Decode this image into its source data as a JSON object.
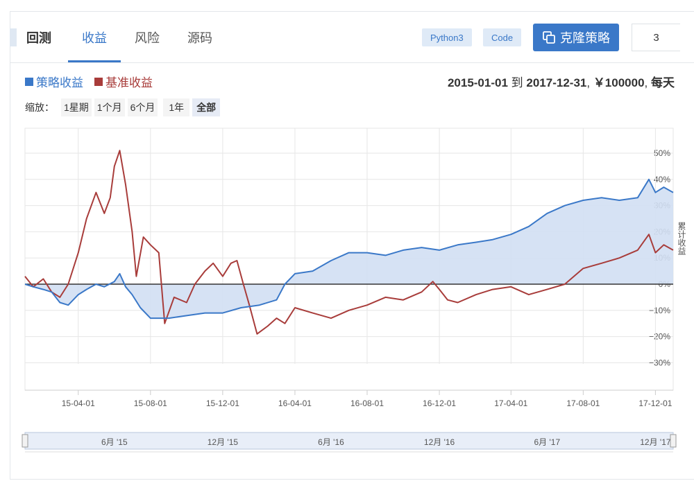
{
  "header": {
    "title": "回测",
    "tabs": [
      {
        "label": "收益",
        "active": true
      },
      {
        "label": "风险",
        "active": false
      },
      {
        "label": "源码",
        "active": false
      }
    ],
    "tags": [
      "Python3",
      "Code"
    ],
    "clone_button": "克隆策略",
    "count": "3"
  },
  "legend": [
    {
      "label": "策略收益",
      "color": "#3a78c8"
    },
    {
      "label": "基准收益",
      "color": "#a83c3a"
    }
  ],
  "info": {
    "start": "2015-01-01",
    "to": "到",
    "end": "2017-12-31",
    "capital": "￥100000",
    "frequency": "每天"
  },
  "zoom": {
    "label": "缩放：",
    "options": [
      "1星期",
      "1个月",
      "6个月",
      "1年",
      "全部"
    ],
    "active": "全部"
  },
  "chart_data": {
    "type": "area",
    "ylabel": "累计收益",
    "y_ticks": [
      "50%",
      "40%",
      "30%",
      "20%",
      "10%",
      "0%",
      "−10%",
      "−20%",
      "−30%"
    ],
    "y_tick_values": [
      50,
      40,
      30,
      20,
      10,
      0,
      -10,
      -20,
      -30
    ],
    "x_ticks": [
      "15-04-01",
      "15-08-01",
      "15-12-01",
      "16-04-01",
      "16-08-01",
      "16-12-01",
      "17-04-01",
      "17-08-01",
      "17-12-01"
    ],
    "navigator_ticks": [
      "6月 '15",
      "12月 '15",
      "6月 '16",
      "12月 '16",
      "6月 '17",
      "12月 '17"
    ],
    "x_range": [
      "2015-01-01",
      "2017-12-31"
    ],
    "series": [
      {
        "name": "策略收益",
        "color": "#3a78c8",
        "points": [
          [
            "2015-01-01",
            0
          ],
          [
            "2015-01-15",
            -1
          ],
          [
            "2015-02-01",
            -2
          ],
          [
            "2015-02-15",
            -3
          ],
          [
            "2015-03-01",
            -7
          ],
          [
            "2015-03-15",
            -8
          ],
          [
            "2015-04-01",
            -4
          ],
          [
            "2015-04-15",
            -2
          ],
          [
            "2015-05-01",
            0
          ],
          [
            "2015-05-15",
            -1
          ],
          [
            "2015-06-01",
            1
          ],
          [
            "2015-06-10",
            4
          ],
          [
            "2015-06-20",
            -1
          ],
          [
            "2015-07-01",
            -4
          ],
          [
            "2015-07-15",
            -9
          ],
          [
            "2015-08-01",
            -13
          ],
          [
            "2015-09-01",
            -13
          ],
          [
            "2015-10-01",
            -12
          ],
          [
            "2015-11-01",
            -11
          ],
          [
            "2015-12-01",
            -11
          ],
          [
            "2016-01-01",
            -9
          ],
          [
            "2016-02-01",
            -8
          ],
          [
            "2016-03-01",
            -6
          ],
          [
            "2016-03-15",
            0
          ],
          [
            "2016-04-01",
            4
          ],
          [
            "2016-05-01",
            5
          ],
          [
            "2016-06-01",
            9
          ],
          [
            "2016-07-01",
            12
          ],
          [
            "2016-08-01",
            12
          ],
          [
            "2016-09-01",
            11
          ],
          [
            "2016-10-01",
            13
          ],
          [
            "2016-11-01",
            14
          ],
          [
            "2016-12-01",
            13
          ],
          [
            "2017-01-01",
            15
          ],
          [
            "2017-02-01",
            16
          ],
          [
            "2017-03-01",
            17
          ],
          [
            "2017-04-01",
            19
          ],
          [
            "2017-05-01",
            22
          ],
          [
            "2017-06-01",
            27
          ],
          [
            "2017-07-01",
            30
          ],
          [
            "2017-08-01",
            32
          ],
          [
            "2017-09-01",
            33
          ],
          [
            "2017-10-01",
            32
          ],
          [
            "2017-11-01",
            33
          ],
          [
            "2017-11-20",
            40
          ],
          [
            "2017-12-01",
            35
          ],
          [
            "2017-12-15",
            37
          ],
          [
            "2017-12-31",
            35
          ]
        ]
      },
      {
        "name": "基准收益",
        "color": "#a83c3a",
        "points": [
          [
            "2015-01-01",
            3
          ],
          [
            "2015-01-15",
            -1
          ],
          [
            "2015-02-01",
            2
          ],
          [
            "2015-02-15",
            -3
          ],
          [
            "2015-03-01",
            -5
          ],
          [
            "2015-03-15",
            0
          ],
          [
            "2015-04-01",
            12
          ],
          [
            "2015-04-15",
            25
          ],
          [
            "2015-05-01",
            35
          ],
          [
            "2015-05-15",
            27
          ],
          [
            "2015-05-25",
            33
          ],
          [
            "2015-06-01",
            45
          ],
          [
            "2015-06-10",
            51
          ],
          [
            "2015-06-20",
            38
          ],
          [
            "2015-07-01",
            20
          ],
          [
            "2015-07-08",
            3
          ],
          [
            "2015-07-20",
            18
          ],
          [
            "2015-08-01",
            15
          ],
          [
            "2015-08-15",
            12
          ],
          [
            "2015-08-25",
            -15
          ],
          [
            "2015-09-10",
            -5
          ],
          [
            "2015-10-01",
            -7
          ],
          [
            "2015-10-15",
            0
          ],
          [
            "2015-11-01",
            5
          ],
          [
            "2015-11-15",
            8
          ],
          [
            "2015-12-01",
            3
          ],
          [
            "2015-12-15",
            8
          ],
          [
            "2015-12-25",
            9
          ],
          [
            "2016-01-05",
            0
          ],
          [
            "2016-01-15",
            -8
          ],
          [
            "2016-01-28",
            -19
          ],
          [
            "2016-02-15",
            -16
          ],
          [
            "2016-03-01",
            -13
          ],
          [
            "2016-03-15",
            -15
          ],
          [
            "2016-04-01",
            -9
          ],
          [
            "2016-05-01",
            -11
          ],
          [
            "2016-06-01",
            -13
          ],
          [
            "2016-07-01",
            -10
          ],
          [
            "2016-08-01",
            -8
          ],
          [
            "2016-09-01",
            -5
          ],
          [
            "2016-10-01",
            -6
          ],
          [
            "2016-11-01",
            -3
          ],
          [
            "2016-11-20",
            1
          ],
          [
            "2016-12-01",
            -2
          ],
          [
            "2016-12-15",
            -6
          ],
          [
            "2017-01-01",
            -7
          ],
          [
            "2017-02-01",
            -4
          ],
          [
            "2017-03-01",
            -2
          ],
          [
            "2017-04-01",
            -1
          ],
          [
            "2017-05-01",
            -4
          ],
          [
            "2017-06-01",
            -2
          ],
          [
            "2017-07-01",
            0
          ],
          [
            "2017-08-01",
            6
          ],
          [
            "2017-09-01",
            8
          ],
          [
            "2017-10-01",
            10
          ],
          [
            "2017-11-01",
            13
          ],
          [
            "2017-11-20",
            19
          ],
          [
            "2017-12-01",
            12
          ],
          [
            "2017-12-15",
            15
          ],
          [
            "2017-12-31",
            13
          ]
        ]
      }
    ]
  }
}
